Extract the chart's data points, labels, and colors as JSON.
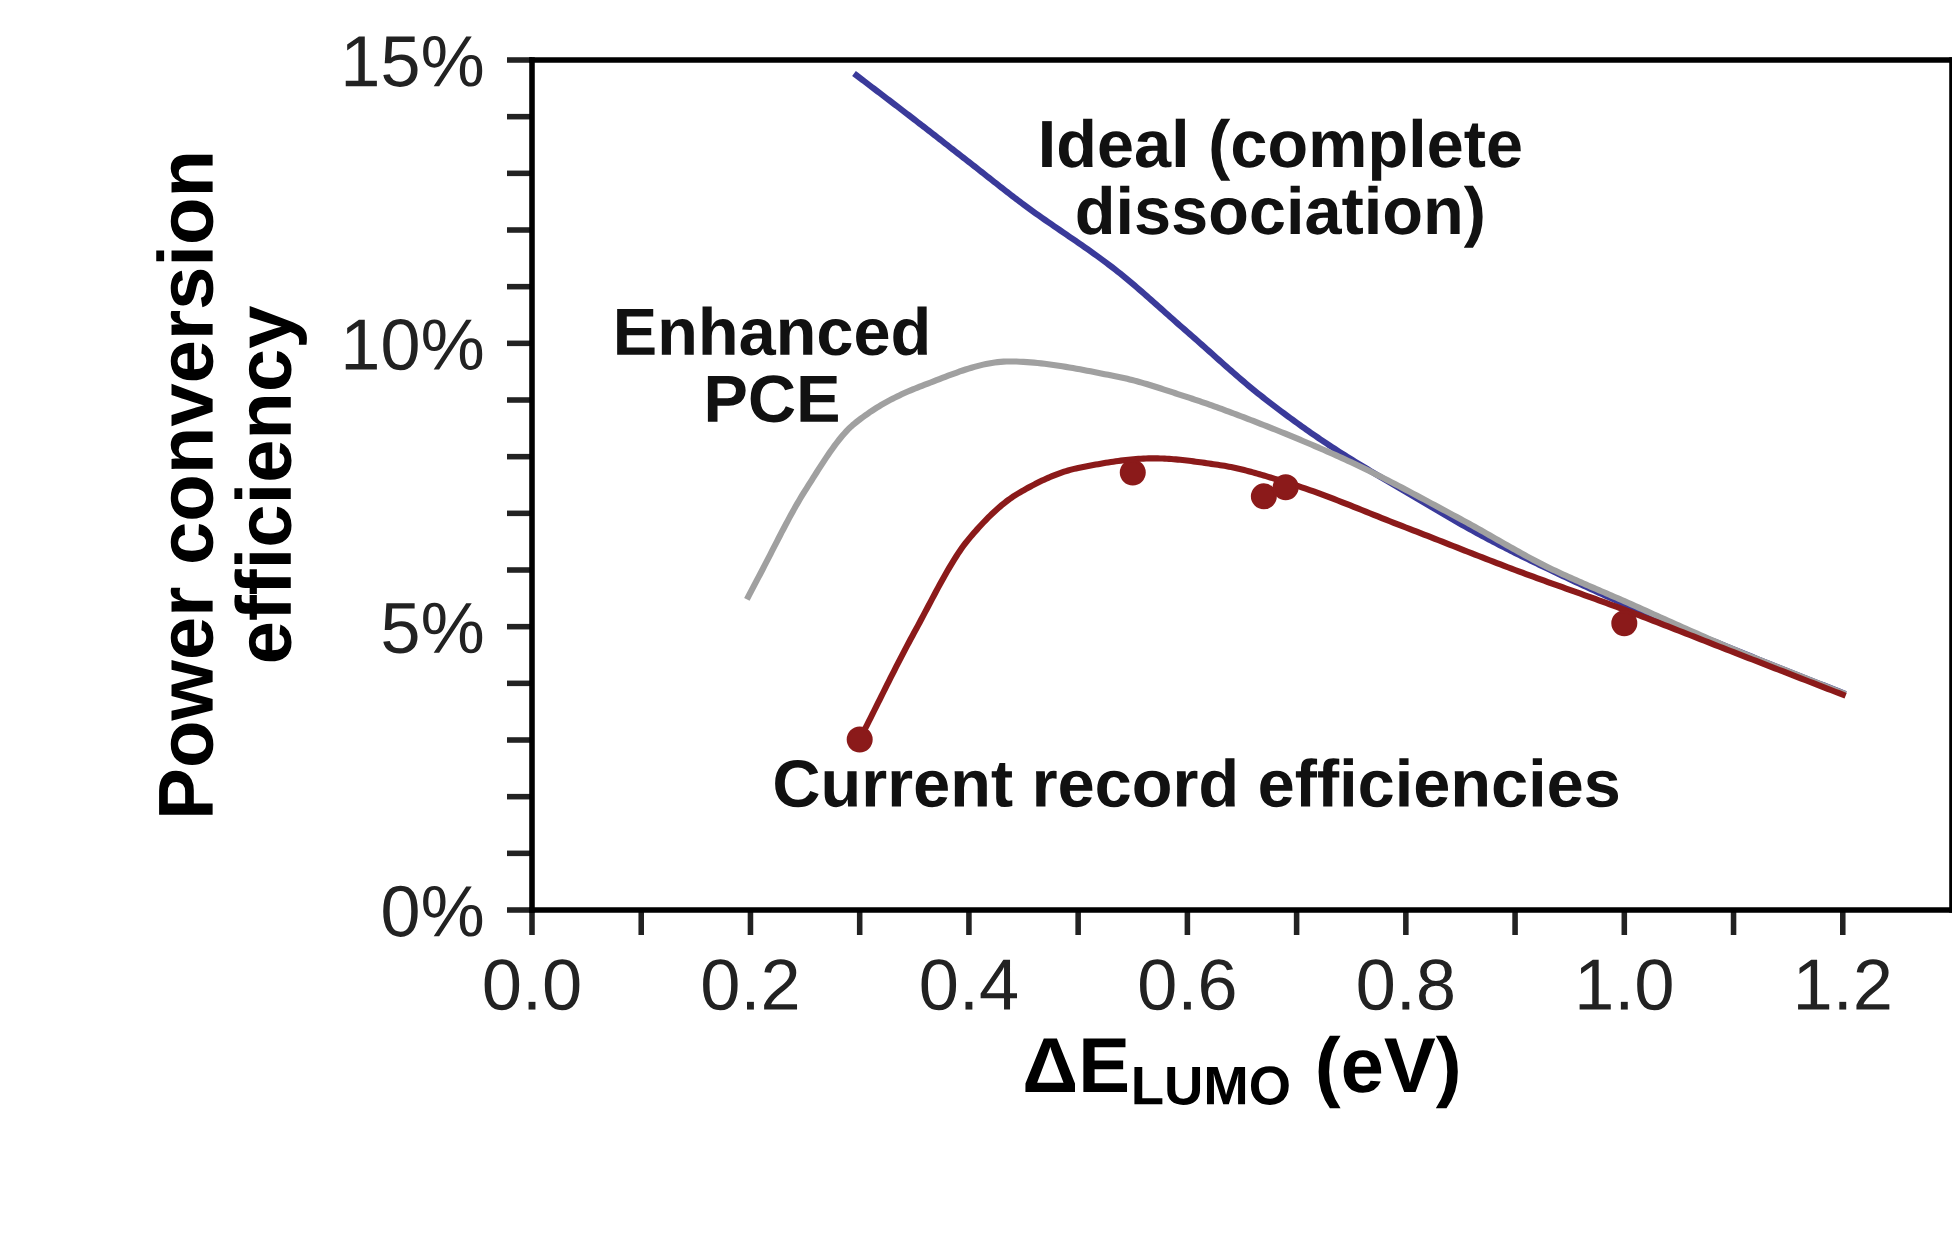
{
  "chart_data": {
    "type": "line",
    "xlabel": "ΔE$_{LUMO}$ (eV)",
    "ylabel": "Power conversion\nefficiency",
    "xlim": [
      0,
      1.3
    ],
    "ylim": [
      0,
      15
    ],
    "xticks": [
      {
        "value": 0,
        "label": "0.0"
      },
      {
        "value": 0.1,
        "label": null
      },
      {
        "value": 0.2,
        "label": "0.2"
      },
      {
        "value": 0.3,
        "label": null
      },
      {
        "value": 0.4,
        "label": "0.4"
      },
      {
        "value": 0.5,
        "label": null
      },
      {
        "value": 0.6,
        "label": "0.6"
      },
      {
        "value": 0.7,
        "label": null
      },
      {
        "value": 0.8,
        "label": "0.8"
      },
      {
        "value": 0.9,
        "label": null
      },
      {
        "value": 1.0,
        "label": "1.0"
      },
      {
        "value": 1.1,
        "label": null
      },
      {
        "value": 1.2,
        "label": "1.2"
      }
    ],
    "yticks": [
      {
        "value": 0,
        "label": "0%"
      },
      {
        "value": 1,
        "label": null
      },
      {
        "value": 2,
        "label": null
      },
      {
        "value": 3,
        "label": null
      },
      {
        "value": 4,
        "label": null
      },
      {
        "value": 5,
        "label": "5%"
      },
      {
        "value": 6,
        "label": null
      },
      {
        "value": 7,
        "label": null
      },
      {
        "value": 8,
        "label": null
      },
      {
        "value": 9,
        "label": null
      },
      {
        "value": 10,
        "label": "10%"
      },
      {
        "value": 11,
        "label": null
      },
      {
        "value": 12,
        "label": null
      },
      {
        "value": 13,
        "label": null
      },
      {
        "value": 14,
        "label": null
      },
      {
        "value": 15,
        "label": "15%"
      }
    ],
    "grid": false,
    "legend": false,
    "series": [
      {
        "name": "Ideal (complete\ndissociation)",
        "color": "#3a3a9a",
        "x": [
          0.297,
          0.35,
          0.4,
          0.45,
          0.534,
          0.6,
          0.667,
          0.73,
          0.8,
          0.87,
          0.93,
          1.0,
          1.1,
          1.2
        ],
        "values": [
          14.73,
          13.95,
          13.2,
          12.45,
          11.3,
          10.2,
          9.08,
          8.2,
          7.38,
          6.6,
          6.02,
          5.4,
          4.6,
          3.83
        ]
      },
      {
        "name": "Enhanced\nPCE",
        "color": "#a0a0a0",
        "x": [
          0.198,
          0.207,
          0.25,
          0.295,
          0.357,
          0.437,
          0.534,
          0.6,
          0.667,
          0.75,
          0.85,
          0.93,
          1.0,
          1.1,
          1.2
        ],
        "values": [
          5.53,
          5.86,
          7.4,
          8.58,
          9.25,
          9.68,
          9.42,
          9.05,
          8.58,
          7.9,
          6.9,
          6.05,
          5.45,
          4.6,
          3.83
        ]
      },
      {
        "name": "Current record efficiencies",
        "color": "#8b1a1a",
        "x": [
          0.3,
          0.35,
          0.4,
          0.445,
          0.5,
          0.569,
          0.63,
          0.69,
          0.8,
          0.9,
          1.0,
          1.1,
          1.2
        ],
        "values": [
          3.01,
          4.9,
          6.55,
          7.35,
          7.8,
          7.97,
          7.85,
          7.55,
          6.75,
          6.0,
          5.3,
          4.55,
          3.8
        ]
      },
      {
        "type": "scatter",
        "color": "#8b1a1a",
        "marker": "circle",
        "x": [
          0.3,
          0.55,
          0.67,
          0.69,
          1.0
        ],
        "values": [
          3.01,
          7.72,
          7.3,
          7.46,
          5.06
        ]
      }
    ]
  }
}
